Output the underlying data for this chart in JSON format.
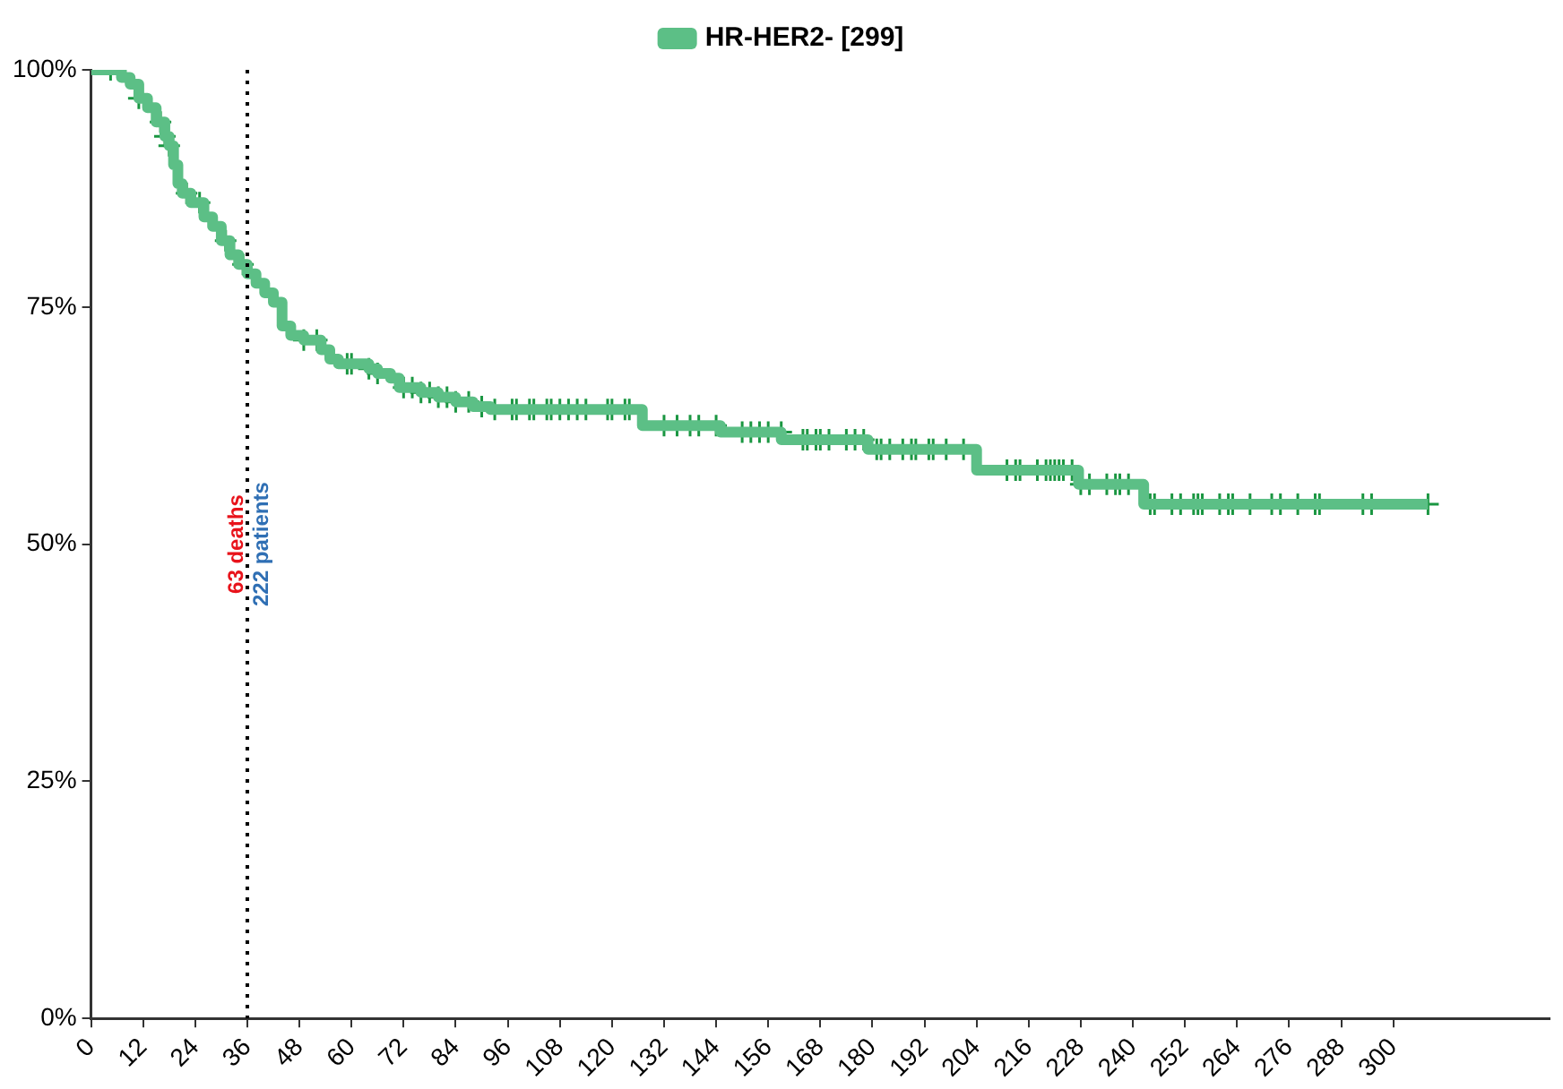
{
  "chart_data": {
    "type": "step",
    "legend": "top",
    "grid": false,
    "series": [
      {
        "name": "HR-HER2- [299]",
        "color": "#5cbf86",
        "type": "step",
        "marker": "none",
        "x": [
          0,
          7,
          9,
          11,
          13,
          15,
          17,
          18,
          19,
          20,
          21,
          23,
          26,
          28,
          30,
          32,
          34,
          36,
          38,
          40,
          42,
          44,
          46,
          49,
          53,
          55,
          57,
          64,
          66,
          69,
          71,
          76,
          80,
          84,
          88,
          92,
          127,
          145,
          159,
          179,
          204,
          227.5,
          242.5,
          308
        ],
        "values": [
          100,
          99.2,
          98.5,
          97,
          96,
          94.5,
          93,
          92,
          90,
          88,
          87,
          86,
          84.5,
          83.5,
          82,
          80.5,
          79.5,
          78.5,
          77.5,
          76.5,
          75.5,
          73,
          72,
          71.5,
          70.5,
          69.5,
          69,
          68.5,
          68,
          67.5,
          66.5,
          66,
          65.5,
          65,
          64.5,
          64.2,
          62.5,
          61.8,
          61,
          60,
          57.8,
          56.3,
          54.2,
          54.2
        ]
      },
      {
        "color": "#1a9641",
        "type": "scatter",
        "marker": "cross",
        "x": [
          4.5,
          11,
          16,
          17,
          18,
          22,
          25,
          31,
          35,
          49,
          52,
          59,
          60,
          64,
          66,
          72,
          74,
          76,
          78,
          80,
          82,
          84,
          87,
          90,
          93,
          97,
          98,
          101,
          102,
          105,
          106,
          108,
          110,
          112,
          114,
          119,
          120,
          123,
          124,
          132,
          135,
          138,
          140,
          144,
          150,
          152,
          154,
          156,
          159,
          164,
          165,
          167,
          168,
          170,
          174,
          176,
          178,
          181,
          182,
          184,
          187,
          189,
          190,
          193,
          194,
          197,
          201,
          211,
          213,
          214,
          218,
          220,
          221,
          222,
          223,
          224,
          226,
          228,
          230,
          234,
          236,
          237,
          239,
          244,
          245,
          249,
          251,
          254,
          255,
          256,
          260,
          262,
          263,
          267,
          272,
          274,
          278,
          282,
          283,
          293,
          295,
          308
        ],
        "values": [
          100,
          97,
          94.5,
          93,
          92,
          87,
          86,
          82,
          79.5,
          71.5,
          71.5,
          69,
          69,
          68.5,
          68,
          66.5,
          66.5,
          66,
          66,
          65.5,
          65.5,
          65,
          65,
          64.5,
          64.2,
          64.2,
          64.2,
          64.2,
          64.2,
          64.2,
          64.2,
          64.2,
          64.2,
          64.2,
          64.2,
          64.2,
          64.2,
          64.2,
          64.2,
          62.5,
          62.5,
          62.5,
          62.5,
          62.5,
          61.8,
          61.8,
          61.8,
          61.8,
          61.8,
          61,
          61,
          61,
          61,
          61,
          61,
          61,
          61,
          60,
          60,
          60,
          60,
          60,
          60,
          60,
          60,
          60,
          60,
          57.8,
          57.8,
          57.8,
          57.8,
          57.8,
          57.8,
          57.8,
          57.8,
          57.8,
          57.8,
          56.3,
          56.3,
          56.3,
          56.3,
          56.3,
          56.3,
          54.2,
          54.2,
          54.2,
          54.2,
          54.2,
          54.2,
          54.2,
          54.2,
          54.2,
          54.2,
          54.2,
          54.2,
          54.2,
          54.2,
          54.2,
          54.2,
          54.2,
          54.2,
          54.2
        ]
      }
    ],
    "xlim": [
      0,
      336
    ],
    "xticks": [
      0,
      12,
      24,
      36,
      48,
      60,
      72,
      84,
      96,
      108,
      120,
      132,
      144,
      156,
      168,
      180,
      192,
      204,
      216,
      228,
      240,
      252,
      264,
      276,
      288,
      300
    ],
    "ylim": [
      0,
      100
    ],
    "yticks": [
      {
        "value": 0,
        "label": "0%"
      },
      {
        "value": 25,
        "label": "25%"
      },
      {
        "value": 50,
        "label": "50%"
      },
      {
        "value": 75,
        "label": "75%"
      },
      {
        "value": 100,
        "label": "100%"
      }
    ],
    "ref_lines": [
      {
        "axis": "x",
        "value": 36,
        "line_style": "dotted",
        "color": "#000000"
      }
    ],
    "annotations": [
      {
        "text": "63 deaths",
        "x": 36,
        "y": 50
      },
      {
        "text": "222 patients",
        "x": 36,
        "y": 50
      }
    ]
  }
}
